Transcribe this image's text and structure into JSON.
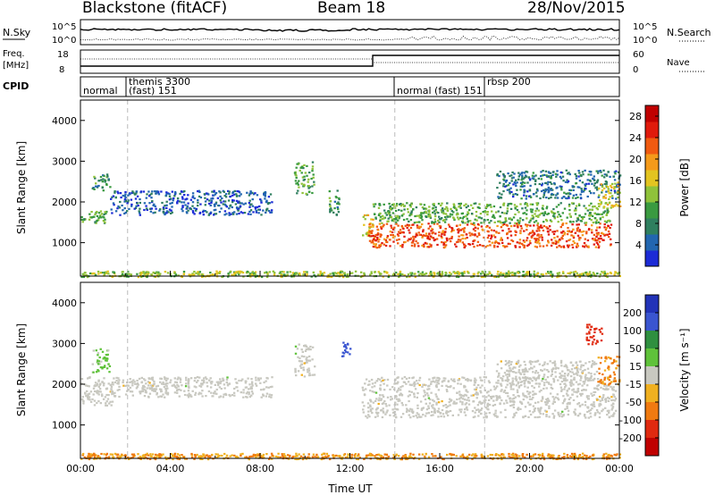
{
  "header": {
    "station": "Blackstone (fitACF)",
    "beam": "Beam 18",
    "date": "28/Nov/2015"
  },
  "noise_panel": {
    "left_label": "N.Sky",
    "right_label": "N.Search",
    "y_ticks_left": [
      "10^5",
      "10^0"
    ],
    "y_ticks_right": [
      "10^5",
      "10^0"
    ]
  },
  "freq_panel": {
    "left_label_1": "Freq.",
    "left_label_2": "[MHz]",
    "right_label": "Nave",
    "left_ticks": [
      "18",
      "8"
    ],
    "right_ticks": [
      "60",
      "0"
    ]
  },
  "cpid_panel": {
    "label": "CPID",
    "segments": [
      {
        "text": "normal",
        "t": 0.0
      },
      {
        "text": "themis 3300",
        "t": 2.1
      },
      {
        "text": "(fast) 151",
        "t": 2.1
      },
      {
        "text": "normal (fast) 151",
        "t": 14.0
      },
      {
        "text": "rbsp 200",
        "t": 18.0
      }
    ]
  },
  "chart_data": [
    {
      "type": "heatmap",
      "panel": "power",
      "ylabel": "Slant Range [km]",
      "xlabel": "",
      "ylim": [
        180,
        4500
      ],
      "xlim": [
        0,
        24
      ],
      "y_ticks": [
        "1000",
        "2000",
        "3000",
        "4000"
      ],
      "colorbar": {
        "label": "Power [dB]",
        "ticks": [
          "4",
          "8",
          "12",
          "16",
          "20",
          "24",
          "28"
        ],
        "range": [
          0,
          30
        ],
        "colors": [
          "#1c2bd6",
          "#2266b0",
          "#2f7f5f",
          "#3a9a40",
          "#8fc23a",
          "#e3c420",
          "#f49a1a",
          "#f05a10",
          "#e01a0c",
          "#c00000"
        ]
      },
      "bands": [
        {
          "t": [
            0.0,
            24.0
          ],
          "r": [
            180,
            320
          ],
          "level": 14
        },
        {
          "t": [
            0.0,
            1.2
          ],
          "r": [
            1500,
            1800
          ],
          "level": 11
        },
        {
          "t": [
            0.5,
            1.3
          ],
          "r": [
            2300,
            2700
          ],
          "level": 8
        },
        {
          "t": [
            1.3,
            8.5
          ],
          "r": [
            1700,
            2300
          ],
          "level": 3
        },
        {
          "t": [
            9.5,
            10.4
          ],
          "r": [
            2200,
            3000
          ],
          "level": 10
        },
        {
          "t": [
            11.0,
            11.5
          ],
          "r": [
            1700,
            2300
          ],
          "level": 8
        },
        {
          "t": [
            12.5,
            13.0
          ],
          "r": [
            1100,
            1700
          ],
          "level": 16
        },
        {
          "t": [
            12.8,
            23.6
          ],
          "r": [
            900,
            1500
          ],
          "level": 24
        },
        {
          "t": [
            13.0,
            23.6
          ],
          "r": [
            1500,
            2000
          ],
          "level": 11
        },
        {
          "t": [
            18.5,
            24.0
          ],
          "r": [
            2100,
            2800
          ],
          "level": 5
        },
        {
          "t": [
            23.0,
            24.0
          ],
          "r": [
            1900,
            2500
          ],
          "level": 16
        }
      ]
    },
    {
      "type": "heatmap",
      "panel": "velocity",
      "ylabel": "Slant Range [km]",
      "xlabel": "Time UT",
      "ylim": [
        180,
        4500
      ],
      "xlim": [
        0,
        24
      ],
      "y_ticks": [
        "1000",
        "2000",
        "3000",
        "4000"
      ],
      "x_ticks": [
        "00:00",
        "04:00",
        "08:00",
        "12:00",
        "16:00",
        "20:00",
        "00:00"
      ],
      "colorbar": {
        "label": "Velocity [m s⁻¹]",
        "ticks": [
          "200",
          "100",
          "50",
          "15",
          "-15",
          "-50",
          "-100",
          "-200"
        ],
        "colors": [
          "#2233b8",
          "#3a55d0",
          "#2f8f3f",
          "#5fc23a",
          "#c8c8c0",
          "#f0b020",
          "#f07a10",
          "#e02a10",
          "#c00000"
        ]
      },
      "bands": [
        {
          "t": [
            0.0,
            24.0
          ],
          "r": [
            180,
            320
          ],
          "vel": -50
        },
        {
          "t": [
            0.0,
            1.5
          ],
          "r": [
            1500,
            2200
          ],
          "vel": 0
        },
        {
          "t": [
            0.5,
            1.3
          ],
          "r": [
            2300,
            2900
          ],
          "vel": 30
        },
        {
          "t": [
            1.3,
            8.5
          ],
          "r": [
            1700,
            2200
          ],
          "vel": 0
        },
        {
          "t": [
            9.5,
            10.4
          ],
          "r": [
            2200,
            3000
          ],
          "vel": 0
        },
        {
          "t": [
            11.6,
            12.0
          ],
          "r": [
            2700,
            3100
          ],
          "vel": 180
        },
        {
          "t": [
            12.5,
            23.8
          ],
          "r": [
            1200,
            2200
          ],
          "vel": 0
        },
        {
          "t": [
            18.5,
            23.0
          ],
          "r": [
            2100,
            2600
          ],
          "vel": 0
        },
        {
          "t": [
            22.5,
            23.2
          ],
          "r": [
            3000,
            3500
          ],
          "vel": -150
        },
        {
          "t": [
            23.0,
            24.0
          ],
          "r": [
            2000,
            2700
          ],
          "vel": -60
        }
      ]
    }
  ],
  "colors": {
    "dash": "#bbbbbb",
    "frame": "#000000"
  }
}
